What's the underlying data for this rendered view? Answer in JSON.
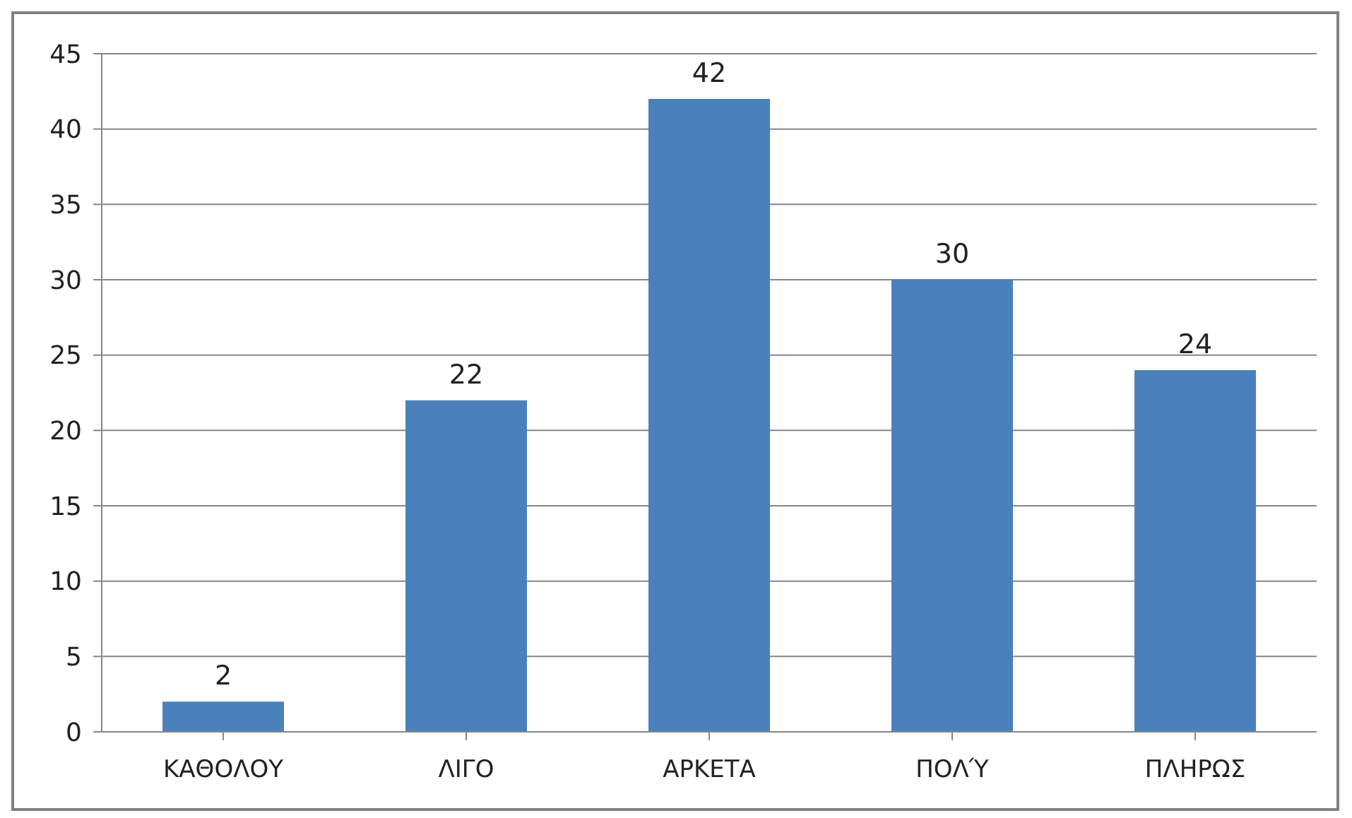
{
  "chart_data": {
    "type": "bar",
    "categories": [
      "ΚΑΘΟΛΟΥ",
      "ΛΙΓΟ",
      "ΑΡΚΕΤΑ",
      "ΠΟΛΎ",
      "ΠΛΗΡΩΣ"
    ],
    "values": [
      2,
      22,
      42,
      30,
      24
    ],
    "color": "#4a81bd",
    "ylim": [
      0,
      45
    ],
    "yticks": [
      0,
      5,
      10,
      15,
      20,
      25,
      30,
      35,
      40,
      45
    ],
    "grid": "y",
    "data_labels": true
  }
}
